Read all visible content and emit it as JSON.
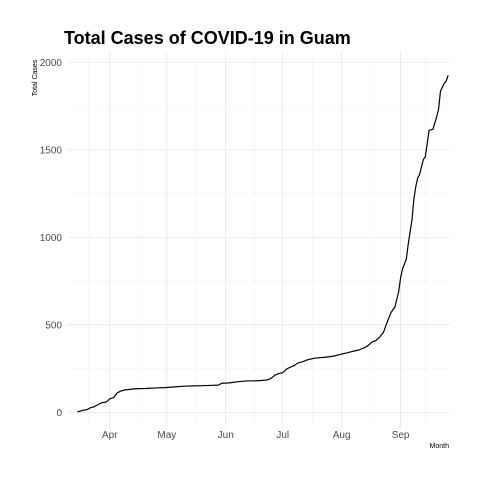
{
  "chart_data": {
    "type": "line",
    "title": "Total Cases of COVID-19 in Guam",
    "xlabel": "Month",
    "ylabel": "Total Cases",
    "grid": true,
    "legend": "none",
    "x_axis": {
      "type": "date",
      "domain": [
        "2020-03-10",
        "2020-09-27"
      ],
      "ticks": [
        {
          "date": "2020-04-01",
          "label": "Apr"
        },
        {
          "date": "2020-05-01",
          "label": "May"
        },
        {
          "date": "2020-06-01",
          "label": "Jun"
        },
        {
          "date": "2020-07-01",
          "label": "Jul"
        },
        {
          "date": "2020-08-01",
          "label": "Aug"
        },
        {
          "date": "2020-09-01",
          "label": "Sep"
        }
      ]
    },
    "y_axis": {
      "ylim": [
        -90,
        2060
      ],
      "ticks": [
        {
          "value": 0,
          "label": "0"
        },
        {
          "value": 500,
          "label": "500"
        },
        {
          "value": 1000,
          "label": "1000"
        },
        {
          "value": 1500,
          "label": "1500"
        },
        {
          "value": 2000,
          "label": "2000"
        }
      ],
      "minor_ticks": [
        250,
        750,
        1250,
        1750
      ]
    },
    "series": [
      {
        "name": "Total Cases",
        "color": "#000000",
        "points": [
          [
            "2020-03-15",
            3
          ],
          [
            "2020-03-16",
            5
          ],
          [
            "2020-03-18",
            12
          ],
          [
            "2020-03-20",
            15
          ],
          [
            "2020-03-22",
            27
          ],
          [
            "2020-03-24",
            32
          ],
          [
            "2020-03-26",
            45
          ],
          [
            "2020-03-28",
            55
          ],
          [
            "2020-03-30",
            58
          ],
          [
            "2020-04-01",
            77
          ],
          [
            "2020-04-03",
            84
          ],
          [
            "2020-04-05",
            112
          ],
          [
            "2020-04-07",
            122
          ],
          [
            "2020-04-09",
            128
          ],
          [
            "2020-04-11",
            130
          ],
          [
            "2020-04-13",
            133
          ],
          [
            "2020-04-16",
            135
          ],
          [
            "2020-04-20",
            136
          ],
          [
            "2020-04-25",
            139
          ],
          [
            "2020-04-30",
            141
          ],
          [
            "2020-05-05",
            145
          ],
          [
            "2020-05-10",
            149
          ],
          [
            "2020-05-15",
            151
          ],
          [
            "2020-05-20",
            152
          ],
          [
            "2020-05-25",
            154
          ],
          [
            "2020-05-28",
            155
          ],
          [
            "2020-05-30",
            166
          ],
          [
            "2020-06-03",
            168
          ],
          [
            "2020-06-07",
            174
          ],
          [
            "2020-06-12",
            179
          ],
          [
            "2020-06-18",
            180
          ],
          [
            "2020-06-23",
            185
          ],
          [
            "2020-06-25",
            195
          ],
          [
            "2020-06-27",
            213
          ],
          [
            "2020-06-29",
            222
          ],
          [
            "2020-07-01",
            226
          ],
          [
            "2020-07-03",
            247
          ],
          [
            "2020-07-05",
            258
          ],
          [
            "2020-07-07",
            267
          ],
          [
            "2020-07-09",
            282
          ],
          [
            "2020-07-11",
            287
          ],
          [
            "2020-07-14",
            300
          ],
          [
            "2020-07-18",
            310
          ],
          [
            "2020-07-22",
            313
          ],
          [
            "2020-07-26",
            318
          ],
          [
            "2020-07-29",
            324
          ],
          [
            "2020-08-01",
            333
          ],
          [
            "2020-08-04",
            340
          ],
          [
            "2020-08-07",
            349
          ],
          [
            "2020-08-10",
            356
          ],
          [
            "2020-08-13",
            369
          ],
          [
            "2020-08-15",
            382
          ],
          [
            "2020-08-17",
            402
          ],
          [
            "2020-08-19",
            410
          ],
          [
            "2020-08-21",
            430
          ],
          [
            "2020-08-23",
            457
          ],
          [
            "2020-08-24",
            488
          ],
          [
            "2020-08-25",
            517
          ],
          [
            "2020-08-27",
            571
          ],
          [
            "2020-08-29",
            601
          ],
          [
            "2020-08-31",
            690
          ],
          [
            "2020-09-01",
            768
          ],
          [
            "2020-09-02",
            820
          ],
          [
            "2020-09-04",
            875
          ],
          [
            "2020-09-05",
            960
          ],
          [
            "2020-09-07",
            1100
          ],
          [
            "2020-09-08",
            1220
          ],
          [
            "2020-09-09",
            1290
          ],
          [
            "2020-09-10",
            1340
          ],
          [
            "2020-09-11",
            1360
          ],
          [
            "2020-09-13",
            1446
          ],
          [
            "2020-09-14",
            1460
          ],
          [
            "2020-09-15",
            1536
          ],
          [
            "2020-09-16",
            1612
          ],
          [
            "2020-09-18",
            1618
          ],
          [
            "2020-09-20",
            1690
          ],
          [
            "2020-09-21",
            1735
          ],
          [
            "2020-09-22",
            1836
          ],
          [
            "2020-09-24",
            1882
          ],
          [
            "2020-09-25",
            1893
          ],
          [
            "2020-09-26",
            1927
          ]
        ]
      }
    ]
  }
}
